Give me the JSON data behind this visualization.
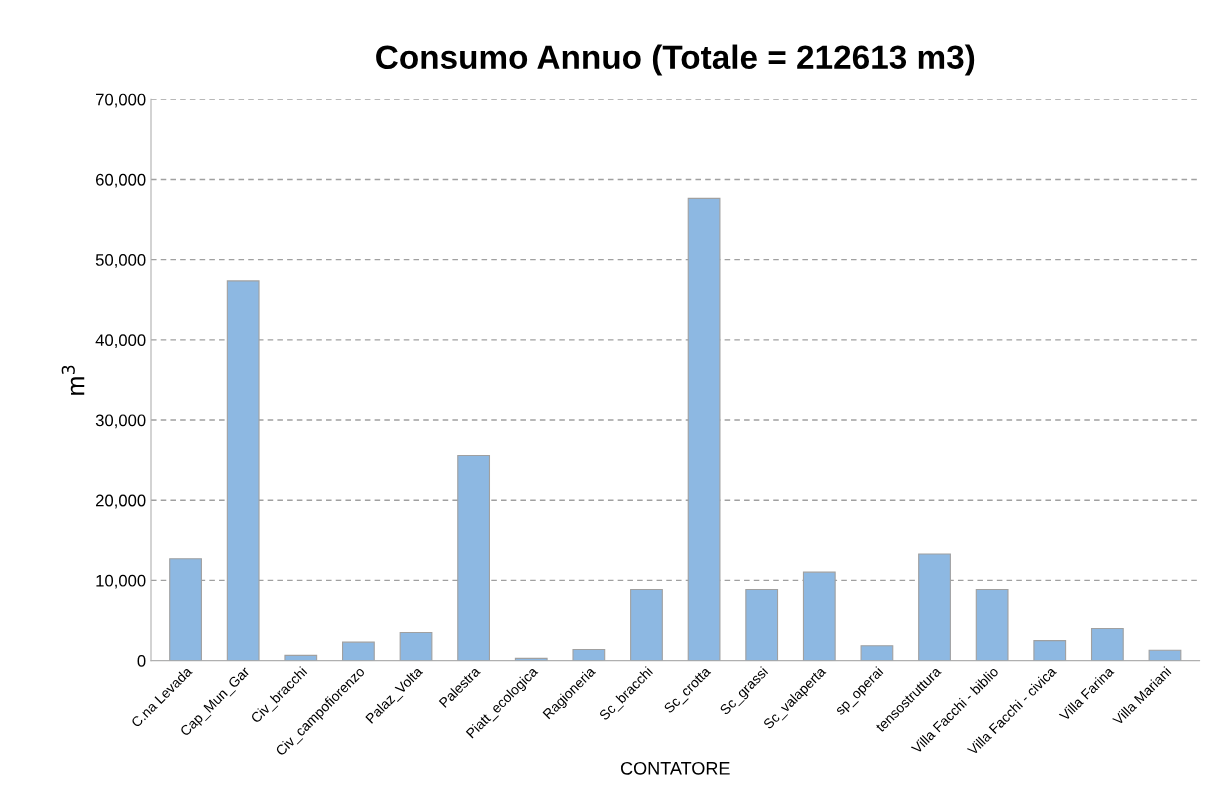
{
  "chart_data": {
    "type": "bar",
    "title": "Consumo Annuo (Totale = 212613 m3)",
    "xlabel": "CONTATORE",
    "ylabel": "m$^{3}$",
    "categories": [
      "C.na Levada",
      "Cap_Mun_Gar",
      "Civ_bracchi",
      "Civ_campofiorenzo",
      "Palaz_Volta",
      "Palestra",
      "Piatt_ecologica",
      "Ragioneria",
      "Sc_bracchi",
      "Sc_crotta",
      "Sc_grassi",
      "Sc_valaperta",
      "sp_operai",
      "tensostruttura",
      "Villa Facchi - biblio",
      "Villa Facchi - civica",
      "Villa Farina",
      "Villa Mariani"
    ],
    "values": [
      12700,
      47350,
      650,
      2300,
      3500,
      25570,
      280,
      1380,
      8860,
      57640,
      8860,
      11030,
      1850,
      13290,
      8860,
      2490,
      4010,
      1290
    ],
    "color": "#8db8e2",
    "ylim": [
      0,
      70000
    ],
    "yticks": [
      {
        "value": 0,
        "label": "0"
      },
      {
        "value": 10000,
        "label": "10,000"
      },
      {
        "value": 20000,
        "label": "20,000"
      },
      {
        "value": 30000,
        "label": "30,000"
      },
      {
        "value": 40000,
        "label": "40,000"
      },
      {
        "value": 50000,
        "label": "50,000"
      },
      {
        "value": 60000,
        "label": "60,000"
      },
      {
        "value": 70000,
        "label": "70,000"
      }
    ],
    "grid": "y",
    "line_style": "dashed"
  }
}
